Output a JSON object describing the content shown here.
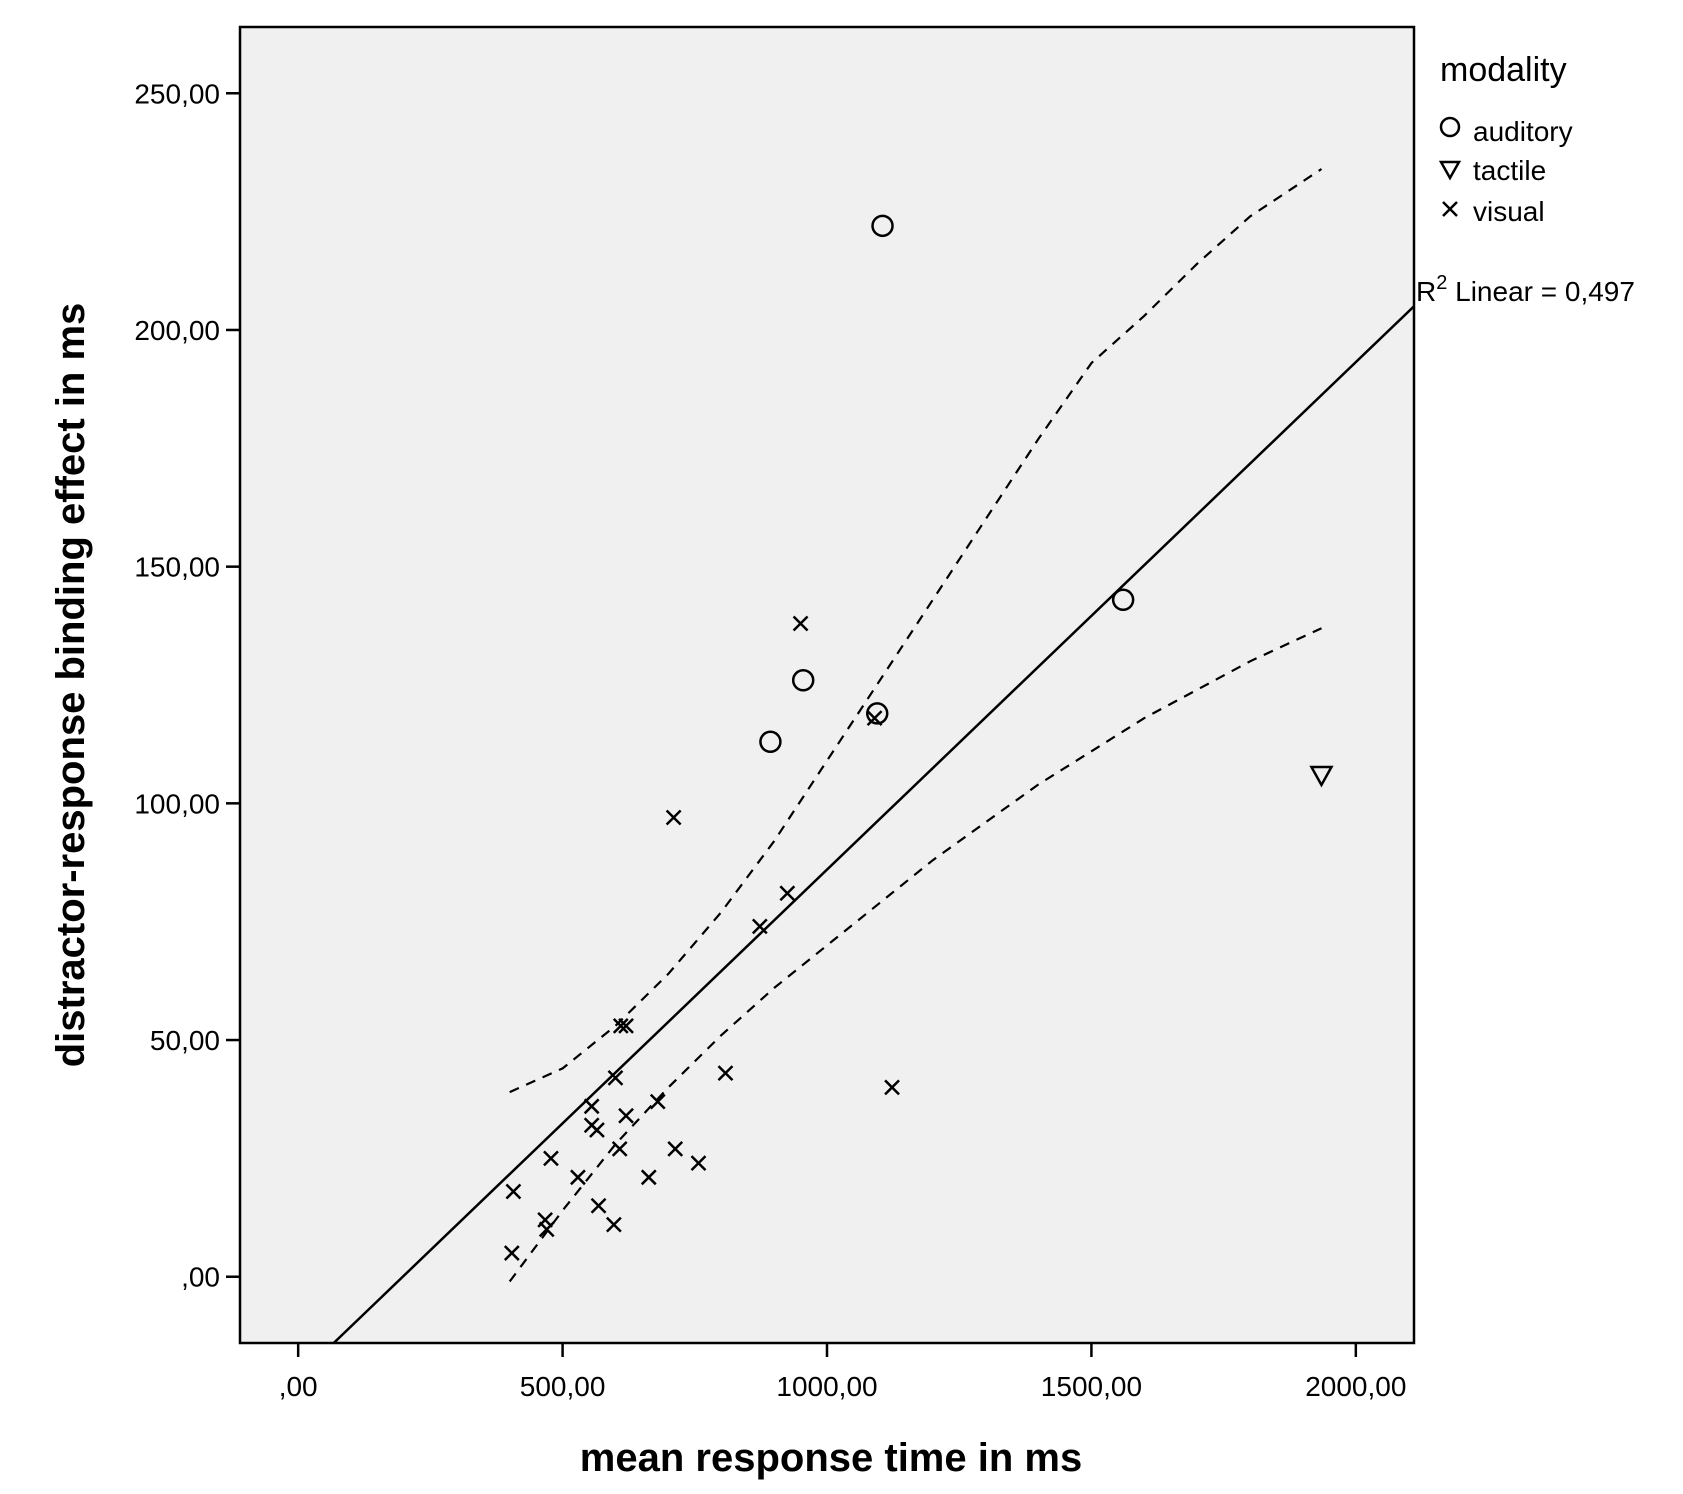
{
  "chart_data": {
    "type": "scatter",
    "xlabel": "mean response time in ms",
    "ylabel": "distractor-response binding effect in ms",
    "xlim": [
      -110,
      2110
    ],
    "ylim": [
      -14,
      264
    ],
    "xticks": [
      0,
      500,
      1000,
      1500,
      2000
    ],
    "xtick_labels": [
      ",00",
      "500,00",
      "1000,00",
      "1500,00",
      "2000,00"
    ],
    "yticks": [
      0,
      50,
      100,
      150,
      200,
      250
    ],
    "ytick_labels": [
      ",00",
      "50,00",
      "100,00",
      "150,00",
      "200,00",
      "250,00"
    ],
    "legend": {
      "title": "modality",
      "position": "top-right outside",
      "entries": [
        {
          "label": "auditory",
          "marker": "circle"
        },
        {
          "label": "tactile",
          "marker": "triangle-down"
        },
        {
          "label": "visual",
          "marker": "x"
        }
      ]
    },
    "series": [
      {
        "name": "auditory",
        "marker": "circle",
        "points": [
          [
            1105,
            222
          ],
          [
            1560,
            143
          ],
          [
            955,
            126
          ],
          [
            1095,
            119
          ],
          [
            893,
            113
          ]
        ]
      },
      {
        "name": "tactile",
        "marker": "triangle-down",
        "points": [
          [
            1935,
            106
          ]
        ]
      },
      {
        "name": "visual",
        "marker": "x",
        "points": [
          [
            950,
            138
          ],
          [
            1090,
            118
          ],
          [
            710,
            97
          ],
          [
            925,
            81
          ],
          [
            873,
            74
          ],
          [
            610,
            53
          ],
          [
            620,
            53
          ],
          [
            600,
            42
          ],
          [
            808,
            43
          ],
          [
            1123,
            40
          ],
          [
            680,
            37
          ],
          [
            555,
            36
          ],
          [
            620,
            34
          ],
          [
            555,
            32
          ],
          [
            565,
            31
          ],
          [
            478,
            25
          ],
          [
            608,
            27
          ],
          [
            713,
            27
          ],
          [
            757,
            24
          ],
          [
            529,
            21
          ],
          [
            663,
            21
          ],
          [
            407,
            18
          ],
          [
            568,
            15
          ],
          [
            467,
            12
          ],
          [
            470,
            10
          ],
          [
            597,
            11
          ],
          [
            404,
            5
          ]
        ]
      }
    ],
    "fit": {
      "type": "linear",
      "label_base": "R",
      "label_sup": "2",
      "label_rest": " Linear = 0,497",
      "line": [
        [
          -110,
          -33
        ],
        [
          2110,
          205
        ]
      ],
      "ci_upper": [
        [
          400,
          39
        ],
        [
          500,
          44
        ],
        [
          600,
          53
        ],
        [
          700,
          64
        ],
        [
          800,
          77
        ],
        [
          900,
          92
        ],
        [
          1000,
          109
        ],
        [
          1100,
          126
        ],
        [
          1200,
          143
        ],
        [
          1300,
          160
        ],
        [
          1400,
          177
        ],
        [
          1500,
          193
        ],
        [
          1600,
          203
        ],
        [
          1700,
          214
        ],
        [
          1800,
          224
        ],
        [
          1935,
          234
        ]
      ],
      "ci_lower": [
        [
          400,
          -1
        ],
        [
          500,
          14
        ],
        [
          600,
          28
        ],
        [
          700,
          40
        ],
        [
          800,
          51
        ],
        [
          900,
          61
        ],
        [
          1000,
          70
        ],
        [
          1100,
          79
        ],
        [
          1200,
          88
        ],
        [
          1300,
          96
        ],
        [
          1400,
          104
        ],
        [
          1500,
          111
        ],
        [
          1600,
          118
        ],
        [
          1700,
          124
        ],
        [
          1800,
          130
        ],
        [
          1935,
          137
        ]
      ]
    }
  }
}
